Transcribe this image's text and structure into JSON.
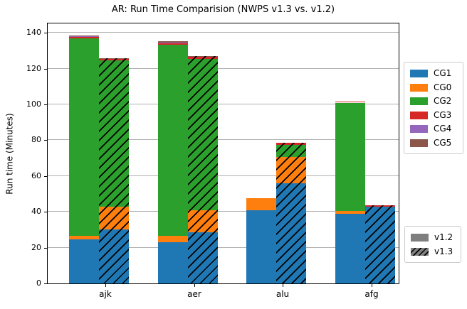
{
  "chart_data": {
    "type": "bar",
    "variant": "grouped-stacked",
    "title": "AR: Run Time Comparision (NWPS v1.3 vs. v1.2)",
    "ylabel": "Run time (Minutes)",
    "xlabel": "",
    "categories": [
      "ajk",
      "aer",
      "alu",
      "afg"
    ],
    "yticks": [
      0,
      20,
      40,
      60,
      80,
      100,
      120,
      140
    ],
    "ylim": [
      0,
      146
    ],
    "grid": "horizontal-only",
    "legend_position": "right-outside",
    "stack_order": [
      "CG1",
      "CG0",
      "CG2",
      "CG3",
      "CG4",
      "CG5"
    ],
    "colors": {
      "CG1": "#1f77b4",
      "CG0": "#ff7f0e",
      "CG2": "#2ca02c",
      "CG3": "#d62728",
      "CG4": "#9467bd",
      "CG5": "#8c564b",
      "version_swatch_gray": "#7f7f7f",
      "grid_gray": "#b0b0b0"
    },
    "series": [
      {
        "name": "CG1",
        "v1_2": [
          24.5,
          23.0,
          41.0,
          39.0
        ],
        "v1_3": [
          30.0,
          28.5,
          56.0,
          43.0
        ]
      },
      {
        "name": "CG0",
        "v1_2": [
          2.0,
          3.5,
          6.5,
          1.5
        ],
        "v1_3": [
          13.0,
          12.5,
          14.5,
          0.0
        ]
      },
      {
        "name": "CG2",
        "v1_2": [
          110.5,
          107.0,
          0.0,
          60.5
        ],
        "v1_3": [
          81.5,
          84.5,
          7.0,
          0.0
        ]
      },
      {
        "name": "CG3",
        "v1_2": [
          1.0,
          1.0,
          0.0,
          0.7
        ],
        "v1_3": [
          1.0,
          1.0,
          1.0,
          0.5
        ]
      },
      {
        "name": "CG4",
        "v1_2": [
          0.2,
          0.2,
          0.0,
          0.0
        ],
        "v1_3": [
          0.0,
          0.0,
          0.0,
          0.0
        ]
      },
      {
        "name": "CG5",
        "v1_2": [
          0.5,
          0.5,
          0.0,
          0.0
        ],
        "v1_3": [
          0.3,
          0.3,
          0.0,
          0.0
        ]
      }
    ],
    "legend_versions": [
      {
        "label": "v1.2",
        "hatched": false
      },
      {
        "label": "v1.3",
        "hatched": true
      }
    ]
  }
}
